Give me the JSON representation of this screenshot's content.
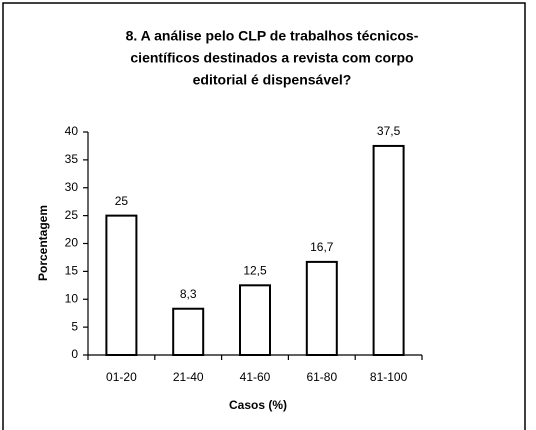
{
  "chart_data": {
    "type": "bar",
    "title": [
      "8. A análise pelo CLP de trabalhos técnicos-",
      "científicos destinados a revista com corpo",
      "editorial é dispensável?"
    ],
    "categories": [
      "01-20",
      "21-40",
      "41-60",
      "61-80",
      "81-100"
    ],
    "values": [
      25,
      8.3,
      12.5,
      16.7,
      37.5
    ],
    "value_labels": [
      "25",
      "8,3",
      "12,5",
      "16,7",
      "37,5"
    ],
    "color": "#ffffff",
    "x_label": "Casos (%)",
    "y_label": "Porcentagem",
    "ylim": [
      0,
      40
    ],
    "yticks": [
      0,
      5,
      10,
      15,
      20,
      25,
      30,
      35,
      40
    ],
    "grid": false
  }
}
